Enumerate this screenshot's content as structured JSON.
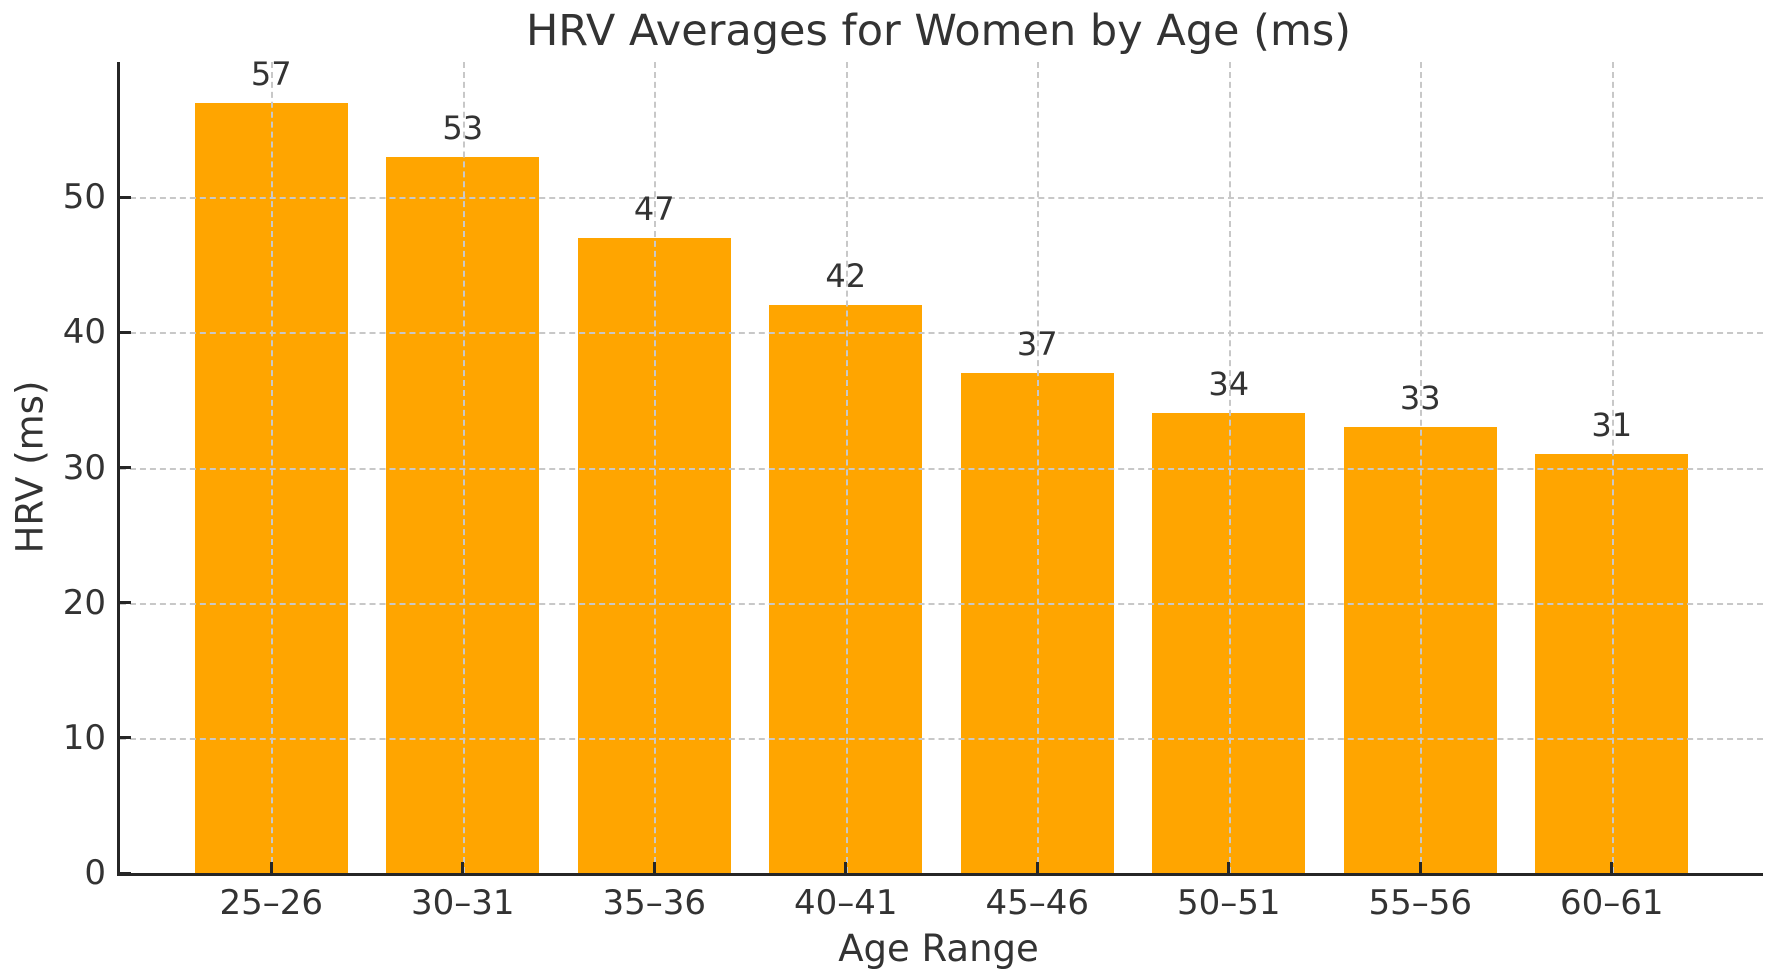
{
  "chart_data": {
    "type": "bar",
    "title": "HRV Averages for Women by Age (ms)",
    "xlabel": "Age Range",
    "ylabel": "HRV (ms)",
    "categories": [
      "25–26",
      "30–31",
      "35–36",
      "40–41",
      "45–46",
      "50–51",
      "55–56",
      "60–61"
    ],
    "values": [
      57,
      53,
      47,
      42,
      37,
      34,
      33,
      31
    ],
    "value_labels": [
      "57",
      "53",
      "47",
      "42",
      "37",
      "34",
      "33",
      "31"
    ],
    "ytick_labels": [
      "0",
      "10",
      "20",
      "30",
      "40",
      "50"
    ],
    "yticks": [
      0,
      10,
      20,
      30,
      40,
      50
    ],
    "ylim": [
      0,
      60
    ],
    "x_axis_padding_units": 0.79,
    "bar_width_fraction": 0.8,
    "grid": "dashed, horizontal and vertical, drawn above bars",
    "legend": "none",
    "colors": {
      "bar": "#FFA500",
      "grid": "#c8c8c8",
      "spine": "#262626",
      "text": "#333333",
      "background": "#ffffff"
    }
  }
}
